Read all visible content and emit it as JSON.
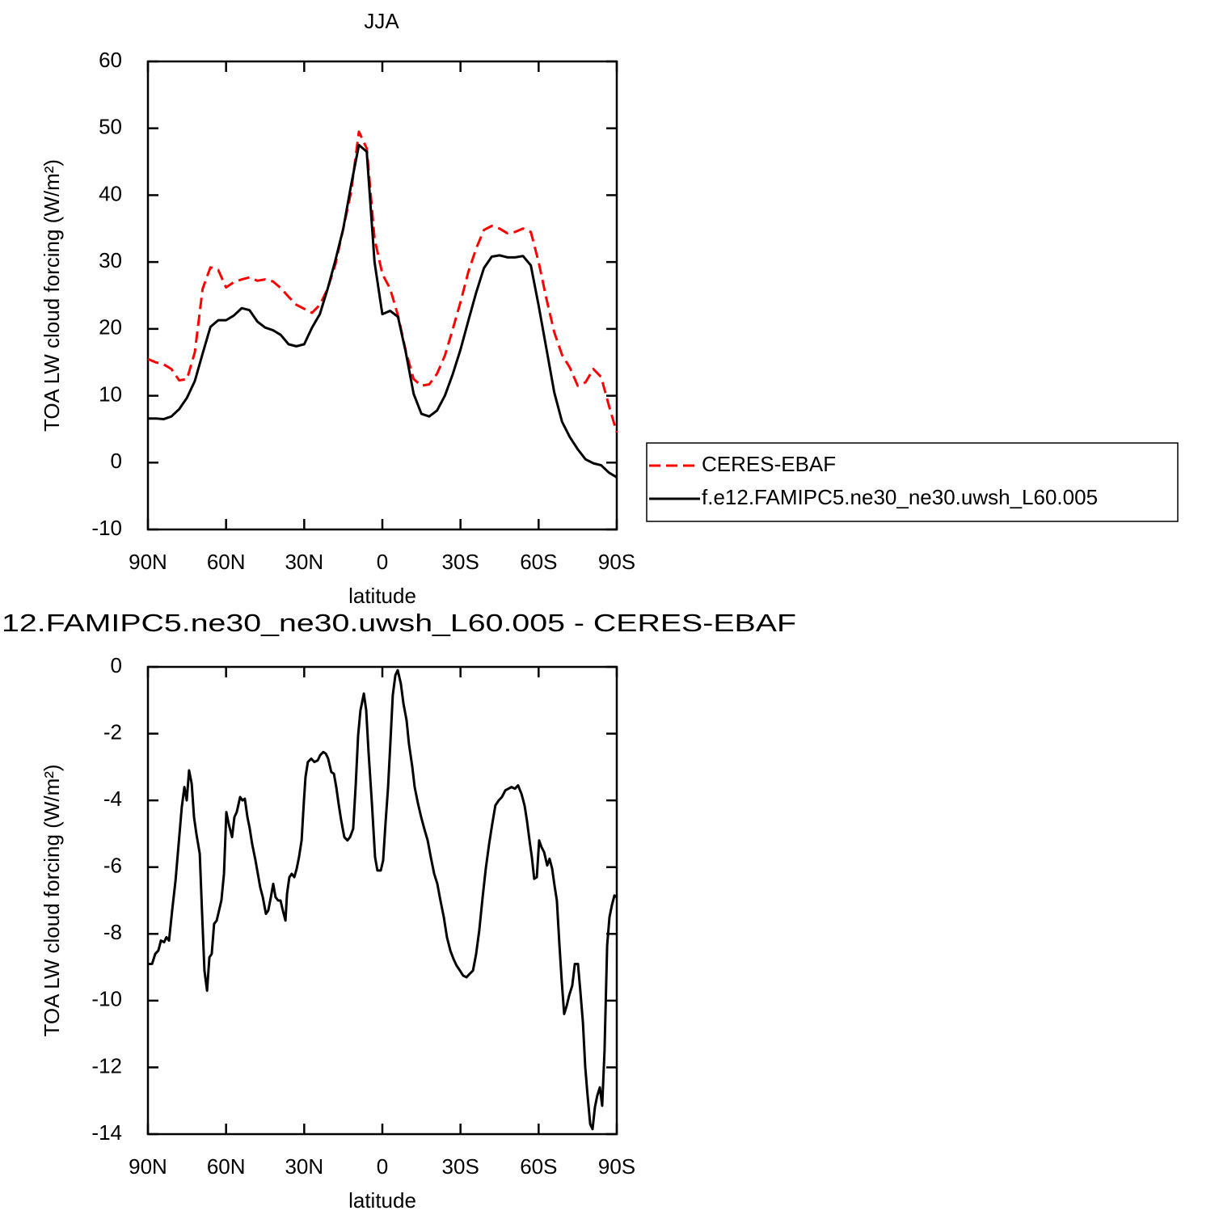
{
  "chart_data": [
    {
      "type": "line",
      "title": "JJA",
      "xlabel": "latitude",
      "ylabel": "TOA LW cloud forcing (W/m²)",
      "xlim": [
        90,
        -90
      ],
      "ylim": [
        -10,
        60
      ],
      "xticks": [
        {
          "value": 90,
          "label": "90N"
        },
        {
          "value": 60,
          "label": "60N"
        },
        {
          "value": 30,
          "label": "30N"
        },
        0,
        {
          "value": -30,
          "label": "30S"
        },
        {
          "value": -60,
          "label": "60S"
        },
        {
          "value": -90,
          "label": "90S"
        }
      ],
      "yticks": [
        60,
        50,
        40,
        30,
        20,
        10,
        0,
        -10
      ],
      "legend": "right",
      "x": [
        90,
        87,
        84,
        81,
        78,
        75,
        72,
        69,
        66,
        63,
        60,
        57,
        54,
        51,
        48,
        45,
        42,
        39,
        36,
        33,
        30,
        27,
        24,
        21,
        18,
        15,
        12,
        9,
        6,
        3,
        0,
        -3,
        -6,
        -9,
        -12,
        -15,
        -18,
        -21,
        -24,
        -27,
        -30,
        -33,
        -36,
        -39,
        -42,
        -45,
        -48,
        -51,
        -54,
        -57,
        -60,
        -63,
        -66,
        -69,
        -72,
        -75,
        -78,
        -81,
        -84,
        -87,
        -90
      ],
      "series": [
        {
          "name": "CERES-EBAF",
          "color": "#ff0000",
          "dashed": true,
          "values": [
            15.5,
            15.0,
            14.7,
            14.0,
            12.3,
            12.5,
            16.5,
            26,
            29.2,
            28.8,
            26.2,
            27,
            27.4,
            27.7,
            27.2,
            27.4,
            27.1,
            26.1,
            24.8,
            23.6,
            23,
            22.4,
            23.6,
            26,
            29.7,
            35,
            40.5,
            49.5,
            47,
            33.5,
            28.2,
            26,
            22,
            16.7,
            12.5,
            11.5,
            11.7,
            13.3,
            16,
            19.9,
            24,
            28.5,
            32,
            34.8,
            35.4,
            35,
            34.3,
            34.5,
            35,
            34.5,
            30,
            24.5,
            19.5,
            16.1,
            14.2,
            11.5,
            12,
            14,
            12.8,
            8.5,
            4.5
          ]
        },
        {
          "name": "f.e12.FAMIPC5.ne30_ne30.uwsh_L60.005",
          "color": "#000000",
          "dashed": false,
          "values": [
            6.6,
            6.6,
            6.5,
            6.9,
            8,
            9.7,
            12.2,
            16.3,
            20.3,
            21.3,
            21.3,
            22,
            23.1,
            22.8,
            21.1,
            20.2,
            19.8,
            19.1,
            17.7,
            17.4,
            17.7,
            20.2,
            22.2,
            26,
            30.3,
            35,
            41.5,
            47.5,
            46.5,
            30,
            22.2,
            22.7,
            21.8,
            16.5,
            10.3,
            7.3,
            6.9,
            7.8,
            10,
            13.2,
            16.9,
            21.2,
            25.4,
            29.1,
            30.8,
            31,
            30.7,
            30.7,
            30.9,
            29.5,
            23.5,
            17,
            10.5,
            6.1,
            3.8,
            2,
            0.5,
            -0.1,
            -0.4,
            -1.5,
            -2.2
          ]
        }
      ]
    },
    {
      "type": "line",
      "title": "12.FAMIPC5.ne30_ne30.uwsh_L60.005 - CERES-EBAF",
      "xlabel": "latitude",
      "ylabel": "TOA LW cloud forcing (W/m²)",
      "xlim": [
        90,
        -90
      ],
      "ylim": [
        -14,
        0
      ],
      "xticks": [
        {
          "value": 90,
          "label": "90N"
        },
        {
          "value": 60,
          "label": "60N"
        },
        {
          "value": 30,
          "label": "30N"
        },
        0,
        {
          "value": -30,
          "label": "30S"
        },
        {
          "value": -60,
          "label": "60S"
        },
        {
          "value": -90,
          "label": "90S"
        }
      ],
      "yticks": [
        0,
        -2,
        -4,
        -6,
        -8,
        -10,
        -12,
        -14
      ],
      "color": "#000000",
      "x": [
        90,
        88.4,
        87.2,
        86,
        85,
        83.8,
        82.9,
        81.9,
        80.7,
        79.4,
        78.2,
        77,
        76,
        75.1,
        74.2,
        73.2,
        72.3,
        71.4,
        70.1,
        69.2,
        68.3,
        67.3,
        66.4,
        65.5,
        64.6,
        63.6,
        62.7,
        61.8,
        60.8,
        59.9,
        59,
        57.7,
        56.8,
        55.9,
        54.6,
        53.7,
        52.8,
        51.8,
        50.9,
        50,
        48.7,
        47.8,
        46.9,
        45.9,
        44.7,
        43.8,
        42.8,
        41.9,
        41,
        40,
        39.1,
        38.2,
        37.2,
        36.6,
        35.7,
        34.8,
        33.8,
        32.9,
        32,
        31,
        30.1,
        29.5,
        28.6,
        27.3,
        26.1,
        24.8,
        23.9,
        22.7,
        21.7,
        20.8,
        19.6,
        18.6,
        17.7,
        16.8,
        15.8,
        14.6,
        13.4,
        12.4,
        11.2,
        10.2,
        9.3,
        8.4,
        7.1,
        6.2,
        5.3,
        4,
        2.8,
        1.9,
        0.6,
        -0.3,
        -1.2,
        -2.2,
        -3.1,
        -4,
        -5,
        -5.9,
        -7.1,
        -8.1,
        -9.3,
        -10.2,
        -11.5,
        -12.4,
        -13.7,
        -14.9,
        -16.1,
        -17.4,
        -18.6,
        -19.9,
        -21.1,
        -22.3,
        -23.6,
        -24.8,
        -26.1,
        -27.3,
        -28.5,
        -29.8,
        -31,
        -32.3,
        -33.5,
        -34.8,
        -36,
        -37.2,
        -38.5,
        -39.7,
        -41,
        -42.2,
        -43.4,
        -44.7,
        -45.9,
        -47.2,
        -48.4,
        -49.6,
        -50.9,
        -52.1,
        -53.4,
        -54.6,
        -55.5,
        -56.5,
        -57.4,
        -58.3,
        -59.3,
        -60.2,
        -61.1,
        -62.1,
        -63.3,
        -64.2,
        -65.2,
        -66.1,
        -67,
        -68,
        -68.9,
        -69.8,
        -70.8,
        -71.7,
        -72.9,
        -73.9,
        -75.1,
        -76,
        -77,
        -77.9,
        -78.8,
        -79.8,
        -80.7,
        -81.6,
        -82.5,
        -83.5,
        -84.4,
        -85.3,
        -86.3,
        -87.2,
        -88.1,
        -89.1,
        -90
      ],
      "values": [
        -8.9,
        -8.9,
        -8.6,
        -8.5,
        -8.2,
        -8.25,
        -8.1,
        -8.2,
        -7.3,
        -6.4,
        -5.3,
        -4.2,
        -3.6,
        -4,
        -3.1,
        -3.5,
        -4.5,
        -5,
        -5.6,
        -7.4,
        -9.1,
        -9.7,
        -8.7,
        -8.6,
        -7.7,
        -7.6,
        -7.3,
        -7,
        -6.2,
        -4.35,
        -4.7,
        -5.1,
        -4.5,
        -4.35,
        -3.9,
        -4,
        -3.95,
        -4.5,
        -4.85,
        -5.3,
        -5.8,
        -6.2,
        -6.6,
        -6.9,
        -7.4,
        -7.3,
        -6.9,
        -6.5,
        -6.9,
        -7,
        -7,
        -7.3,
        -7.6,
        -6.8,
        -6.3,
        -6.2,
        -6.3,
        -6.05,
        -5.7,
        -5.2,
        -4,
        -3.3,
        -2.85,
        -2.75,
        -2.85,
        -2.8,
        -2.65,
        -2.55,
        -2.6,
        -2.75,
        -3.15,
        -3.2,
        -3.6,
        -4.1,
        -4.6,
        -5.1,
        -5.2,
        -5.1,
        -4.85,
        -3.5,
        -2.05,
        -1.3,
        -0.8,
        -1.3,
        -2.55,
        -4.1,
        -5.7,
        -6.1,
        -6.1,
        -5.8,
        -4.7,
        -3.6,
        -2.25,
        -0.85,
        -0.25,
        -0.1,
        -0.5,
        -1.1,
        -1.6,
        -2.3,
        -3,
        -3.6,
        -4.1,
        -4.5,
        -4.85,
        -5.2,
        -5.7,
        -6.2,
        -6.5,
        -7,
        -7.5,
        -8.1,
        -8.5,
        -8.75,
        -8.95,
        -9.1,
        -9.25,
        -9.3,
        -9.2,
        -9.1,
        -8.6,
        -7.9,
        -6.9,
        -6.05,
        -5.3,
        -4.7,
        -4.15,
        -4,
        -3.9,
        -3.7,
        -3.65,
        -3.6,
        -3.65,
        -3.55,
        -3.8,
        -4.15,
        -4.6,
        -5.2,
        -5.7,
        -6.35,
        -6.3,
        -5.2,
        -5.4,
        -5.55,
        -5.95,
        -5.75,
        -6.05,
        -6.55,
        -7,
        -8.35,
        -9.45,
        -10.4,
        -10.15,
        -9.85,
        -9.55,
        -8.9,
        -8.9,
        -9.7,
        -10.65,
        -12,
        -12.85,
        -13.7,
        -13.85,
        -13.2,
        -12.85,
        -12.6,
        -13.15,
        -11.5,
        -8.35,
        -7.5,
        -7.15,
        -6.85,
        -6.9
      ]
    }
  ]
}
